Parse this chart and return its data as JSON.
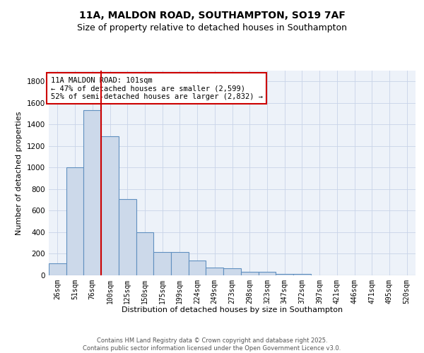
{
  "title_line1": "11A, MALDON ROAD, SOUTHAMPTON, SO19 7AF",
  "title_line2": "Size of property relative to detached houses in Southampton",
  "xlabel": "Distribution of detached houses by size in Southampton",
  "ylabel": "Number of detached properties",
  "categories": [
    "26sqm",
    "51sqm",
    "76sqm",
    "100sqm",
    "125sqm",
    "150sqm",
    "175sqm",
    "199sqm",
    "224sqm",
    "249sqm",
    "273sqm",
    "298sqm",
    "323sqm",
    "347sqm",
    "372sqm",
    "397sqm",
    "421sqm",
    "446sqm",
    "471sqm",
    "495sqm",
    "520sqm"
  ],
  "values": [
    110,
    1000,
    1530,
    1290,
    710,
    400,
    215,
    215,
    135,
    75,
    65,
    35,
    30,
    15,
    15,
    0,
    0,
    0,
    0,
    0,
    0
  ],
  "bar_color": "#ccd9ea",
  "bar_edge_color": "#6090c0",
  "background_color": "#ffffff",
  "plot_bg_color": "#edf2f9",
  "red_line_index": 3,
  "annotation_text": "11A MALDON ROAD: 101sqm\n← 47% of detached houses are smaller (2,599)\n52% of semi-detached houses are larger (2,832) →",
  "annotation_box_color": "#ffffff",
  "annotation_box_edge": "#cc0000",
  "ylim": [
    0,
    1900
  ],
  "yticks": [
    0,
    200,
    400,
    600,
    800,
    1000,
    1200,
    1400,
    1600,
    1800
  ],
  "footer_text": "Contains HM Land Registry data © Crown copyright and database right 2025.\nContains public sector information licensed under the Open Government Licence v3.0.",
  "title_fontsize": 10,
  "subtitle_fontsize": 9,
  "tick_fontsize": 7,
  "ylabel_fontsize": 8,
  "xlabel_fontsize": 8,
  "footer_fontsize": 6,
  "ann_fontsize": 7.5
}
